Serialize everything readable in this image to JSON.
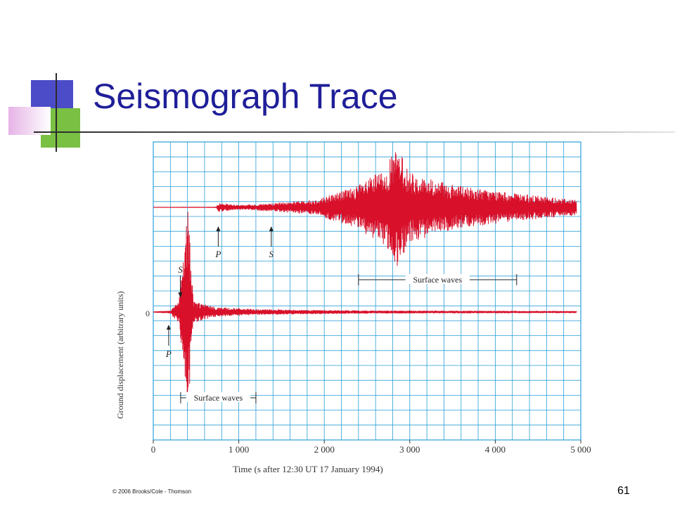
{
  "slide": {
    "title": "Seismograph Trace",
    "copyright": "© 2006 Brooks/Cole - Thomson",
    "number": "61"
  },
  "colors": {
    "title": "#1f1f99",
    "grid": "#2a9fd8",
    "trace": "#d8102a",
    "deco_blue": "#4c4cc8",
    "deco_green": "#7ac043",
    "deco_pink": "#e6b3e6"
  },
  "chart_data": {
    "type": "line",
    "xlabel": "Time (s after 12:30 UT 17 January 1994)",
    "ylabel": "Ground displacement (arbitrary units)",
    "xlim": [
      0,
      5000
    ],
    "x_ticks": [
      0,
      1000,
      2000,
      3000,
      4000,
      5000
    ],
    "x_tick_labels": [
      "0",
      "1 000",
      "2 000",
      "3 000",
      "4 000",
      "5 000"
    ],
    "y_tick_labels": [
      "0"
    ],
    "grid": true,
    "series": [
      {
        "station": "upper",
        "baseline_level": 1,
        "onset_time": 0,
        "end_time": 4950,
        "envelope": [
          {
            "t": 0,
            "a": 0.002
          },
          {
            "t": 740,
            "a": 0.004
          },
          {
            "t": 760,
            "a": 0.07
          },
          {
            "t": 1000,
            "a": 0.03
          },
          {
            "t": 1380,
            "a": 0.06
          },
          {
            "t": 1900,
            "a": 0.12
          },
          {
            "t": 2400,
            "a": 0.35
          },
          {
            "t": 2700,
            "a": 0.6
          },
          {
            "t": 2850,
            "a": 0.95
          },
          {
            "t": 3000,
            "a": 0.55
          },
          {
            "t": 3500,
            "a": 0.35
          },
          {
            "t": 4200,
            "a": 0.22
          },
          {
            "t": 4950,
            "a": 0.12
          }
        ],
        "markers": [
          {
            "label": "P",
            "time": 760
          },
          {
            "label": "S",
            "time": 1380
          }
        ],
        "bracket": {
          "label": "Surface waves",
          "start": 2400,
          "end": 4250
        }
      },
      {
        "station": "lower",
        "baseline_level": 0,
        "onset_time": 0,
        "end_time": 4950,
        "envelope": [
          {
            "t": 0,
            "a": 0.004
          },
          {
            "t": 200,
            "a": 0.02
          },
          {
            "t": 300,
            "a": 0.18
          },
          {
            "t": 360,
            "a": 0.9
          },
          {
            "t": 400,
            "a": 1.9
          },
          {
            "t": 470,
            "a": 0.18
          },
          {
            "t": 700,
            "a": 0.08
          },
          {
            "t": 1200,
            "a": 0.04
          },
          {
            "t": 2500,
            "a": 0.02
          },
          {
            "t": 4950,
            "a": 0.012
          }
        ],
        "markers": [
          {
            "label": "P",
            "time": 180
          },
          {
            "label": "S",
            "time": 300
          }
        ],
        "bracket": {
          "label": "Surface waves",
          "start": 320,
          "end": 1200
        }
      }
    ]
  }
}
